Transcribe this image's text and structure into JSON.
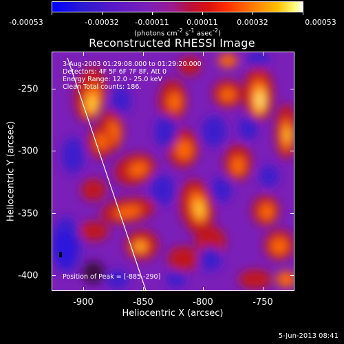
{
  "title": "Reconstructed RHESSI Image",
  "colorbar": {
    "labels": [
      "-0.00053",
      "-0.00032",
      "-0.00011",
      "0.00011",
      "0.00032",
      "0.00053"
    ],
    "units": "(photons cm",
    "units_sup1": "-2",
    "units_mid1": " s",
    "units_sup2": "-1",
    "units_mid2": " asec",
    "units_sup3": "-2",
    "units_end": ")"
  },
  "info": {
    "time_range": "3-Aug-2003 01:29:08.000 to 01:29:20.000",
    "detectors": "Detectors: 4F 5F 6F 7F 8F, Att 0",
    "energy": "Energy Range: 12.0 - 25.0 keV",
    "clean": "Clean    Total counts: 186.",
    "peak": "Position of Peak = [-885,-290]"
  },
  "axes": {
    "xlabel": "Heliocentric X (arcsec)",
    "ylabel": "Heliocentric Y (arcsec)",
    "xticks": [
      "-900",
      "-850",
      "-800",
      "-750"
    ],
    "yticks": [
      "-250",
      "-300",
      "-350",
      "-400"
    ],
    "xlim": [
      -923,
      -730
    ],
    "ylim": [
      -415,
      -225
    ]
  },
  "footer": {
    "date": "5-Jun-2013 08:41"
  }
}
